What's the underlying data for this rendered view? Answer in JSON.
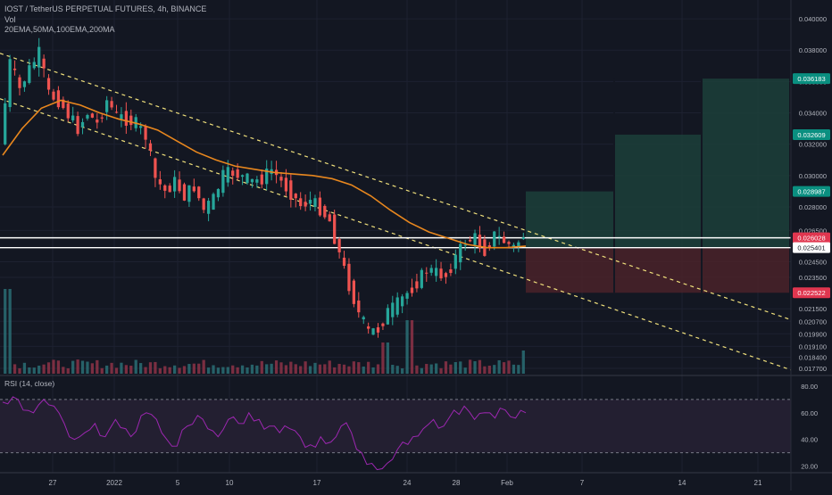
{
  "header": {
    "symbol_line": "IOST / TetherUS PERPETUAL FUTURES, 4h, BINANCE",
    "volume_label": "Vol",
    "ma_label": "20EMA,50MA,100EMA,200MA"
  },
  "rsi_label": "RSI (14, close)",
  "colors": {
    "background": "#131722",
    "up_candle": "#26a69a",
    "down_candle": "#ef5350",
    "moving_average": "#e8871e",
    "trendline": "#f0e07c",
    "horizontal_level": "#ffffff",
    "profit_zone": "#1c3f3a",
    "loss_zone": "#4a2229",
    "rsi_line": "#9c27b0",
    "rsi_band": "#231f31"
  },
  "chart_data": {
    "type": "candlestick",
    "title": "IOST / TetherUS PERPETUAL FUTURES, 4h, BINANCE",
    "x_tick_labels": [
      "27",
      "2022",
      "5",
      "10",
      "17",
      "24",
      "28",
      "Feb",
      "7",
      "14",
      "21"
    ],
    "price_axis": {
      "ylim": [
        0.0173,
        0.0412
      ],
      "tick_labels": [
        "0.040000",
        "0.038000",
        "0.036000",
        "0.034000",
        "0.032000",
        "0.030000",
        "0.028000",
        "0.026500",
        "0.024500",
        "0.023500",
        "0.021500",
        "0.020700",
        "0.019900",
        "0.019100",
        "0.018400",
        "0.017700"
      ]
    },
    "price_labels": [
      {
        "value": "0.036183",
        "kind": "take-profit-3"
      },
      {
        "value": "0.032609",
        "kind": "take-profit-2"
      },
      {
        "value": "0.028987",
        "kind": "take-profit-1"
      },
      {
        "value": "0.026028",
        "kind": "resistance"
      },
      {
        "value": "0.025401",
        "kind": "support"
      },
      {
        "value": "0.022522",
        "kind": "stop-loss"
      }
    ],
    "levels": [
      0.026028,
      0.025401
    ],
    "position": {
      "entry": 0.0254,
      "stop": 0.022522,
      "targets": [
        0.028987,
        0.032609,
        0.036183
      ]
    },
    "price_path": [
      0.032,
      0.0372,
      0.0355,
      0.0368,
      0.0378,
      0.0352,
      0.0348,
      0.0339,
      0.033,
      0.034,
      0.0333,
      0.0348,
      0.0338,
      0.0336,
      0.0333,
      0.0325,
      0.0298,
      0.029,
      0.0296,
      0.0287,
      0.0293,
      0.0278,
      0.0285,
      0.03,
      0.0302,
      0.0299,
      0.0296,
      0.0298,
      0.0304,
      0.0296,
      0.0289,
      0.0281,
      0.0284,
      0.0279,
      0.0271,
      0.025,
      0.023,
      0.0212,
      0.02,
      0.0202,
      0.0213,
      0.0218,
      0.0225,
      0.0232,
      0.024,
      0.0238,
      0.0236,
      0.0248,
      0.0258,
      0.026,
      0.0252,
      0.0262,
      0.0258,
      0.0254,
      0.0262
    ],
    "moving_average": [
      0.0313,
      0.033,
      0.0343,
      0.0348,
      0.0345,
      0.034,
      0.0336,
      0.0333,
      0.0329,
      0.0322,
      0.0315,
      0.031,
      0.0306,
      0.0304,
      0.0302,
      0.0301,
      0.03,
      0.0298,
      0.0294,
      0.0287,
      0.0278,
      0.027,
      0.0264,
      0.026,
      0.0256,
      0.0254,
      0.0254,
      0.0255
    ],
    "trendlines": [
      {
        "from": [
          0,
          0.0378
        ],
        "to": [
          1,
          0.0208
        ]
      },
      {
        "from": [
          0,
          0.0349
        ],
        "to": [
          1,
          0.0176
        ]
      }
    ],
    "rsi": {
      "ylim": [
        15,
        88
      ],
      "tick_labels": [
        "80.00",
        "60.00",
        "40.00",
        "20.00"
      ],
      "bands": [
        70,
        30
      ],
      "values": [
        68,
        72,
        62,
        60,
        70,
        65,
        52,
        40,
        45,
        52,
        42,
        55,
        48,
        46,
        60,
        55,
        40,
        35,
        50,
        58,
        48,
        42,
        55,
        52,
        60,
        55,
        50,
        45,
        48,
        42,
        36,
        42,
        38,
        50,
        45,
        30,
        22,
        18,
        25,
        38,
        42,
        48,
        55,
        50,
        62,
        65,
        55,
        60,
        56,
        62,
        56,
        60
      ]
    }
  }
}
